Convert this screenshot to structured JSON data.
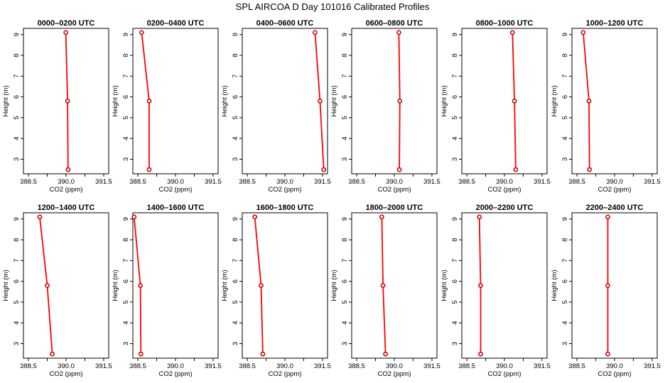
{
  "figure_title": "SPL AIRCOA D  Day 101016  Calibrated Profiles",
  "colors": {
    "line": "#ff0000",
    "marker": "#cc0000",
    "axis": "#000000"
  },
  "chart_data": [
    {
      "type": "line",
      "title": "0000–0200 UTC",
      "xlabel": "CO2 (ppm)",
      "ylabel": "Height (m)",
      "xlim": [
        388.3,
        391.7
      ],
      "ylim": [
        2.3,
        9.3
      ],
      "x_ticks": [
        "388.5",
        "390.0",
        "391.5"
      ],
      "y_ticks": [
        "3",
        "4",
        "5",
        "6",
        "7",
        "8",
        "9"
      ],
      "series": [
        {
          "x": [
            390.08,
            390.06,
            389.99
          ],
          "y": [
            2.5,
            5.8,
            9.1
          ]
        }
      ]
    },
    {
      "type": "line",
      "title": "0200–0400 UTC",
      "xlabel": "CO2 (ppm)",
      "ylabel": "Height (m)",
      "xlim": [
        388.3,
        391.7
      ],
      "ylim": [
        2.3,
        9.3
      ],
      "x_ticks": [
        "388.5",
        "390.0",
        "391.5"
      ],
      "y_ticks": [
        "3",
        "4",
        "5",
        "6",
        "7",
        "8",
        "9"
      ],
      "series": [
        {
          "x": [
            388.95,
            388.95,
            388.65
          ],
          "y": [
            2.5,
            5.8,
            9.1
          ]
        }
      ]
    },
    {
      "type": "line",
      "title": "0400–0600 UTC",
      "xlabel": "CO2 (ppm)",
      "ylabel": "Height (m)",
      "xlim": [
        388.3,
        391.7
      ],
      "ylim": [
        2.3,
        9.3
      ],
      "x_ticks": [
        "388.5",
        "390.0",
        "391.5"
      ],
      "y_ticks": [
        "3",
        "4",
        "5",
        "6",
        "7",
        "8",
        "9"
      ],
      "series": [
        {
          "x": [
            391.55,
            391.4,
            391.2
          ],
          "y": [
            2.5,
            5.8,
            9.1
          ]
        }
      ]
    },
    {
      "type": "line",
      "title": "0600–0800 UTC",
      "xlabel": "CO2 (ppm)",
      "ylabel": "Height (m)",
      "xlim": [
        388.3,
        391.7
      ],
      "ylim": [
        2.3,
        9.3
      ],
      "x_ticks": [
        "388.5",
        "390.0",
        "391.5"
      ],
      "y_ticks": [
        "3",
        "4",
        "5",
        "6",
        "7",
        "8",
        "9"
      ],
      "series": [
        {
          "x": [
            390.2,
            390.22,
            390.18
          ],
          "y": [
            2.5,
            5.8,
            9.1
          ]
        }
      ]
    },
    {
      "type": "line",
      "title": "0800–1000 UTC",
      "xlabel": "CO2 (ppm)",
      "ylabel": "Height (m)",
      "xlim": [
        388.3,
        391.7
      ],
      "ylim": [
        2.3,
        9.3
      ],
      "x_ticks": [
        "388.5",
        "390.0",
        "391.5"
      ],
      "y_ticks": [
        "3",
        "4",
        "5",
        "6",
        "7",
        "8",
        "9"
      ],
      "series": [
        {
          "x": [
            390.45,
            390.4,
            390.32
          ],
          "y": [
            2.5,
            5.8,
            9.1
          ]
        }
      ]
    },
    {
      "type": "line",
      "title": "1000–1200 UTC",
      "xlabel": "CO2 (ppm)",
      "ylabel": "Height (m)",
      "xlim": [
        388.3,
        391.7
      ],
      "ylim": [
        2.3,
        9.3
      ],
      "x_ticks": [
        "388.5",
        "390.0",
        "391.5"
      ],
      "y_ticks": [
        "3",
        "4",
        "5",
        "6",
        "7",
        "8",
        "9"
      ],
      "series": [
        {
          "x": [
            389.0,
            388.98,
            388.75
          ],
          "y": [
            2.5,
            5.8,
            9.1
          ]
        }
      ]
    },
    {
      "type": "line",
      "title": "1200–1400 UTC",
      "xlabel": "CO2 (ppm)",
      "ylabel": "Height (m)",
      "xlim": [
        388.3,
        391.7
      ],
      "ylim": [
        2.3,
        9.3
      ],
      "x_ticks": [
        "388.5",
        "390.0",
        "391.5"
      ],
      "y_ticks": [
        "3",
        "4",
        "5",
        "6",
        "7",
        "8",
        "9"
      ],
      "series": [
        {
          "x": [
            389.45,
            389.25,
            388.95
          ],
          "y": [
            2.5,
            5.8,
            9.1
          ]
        }
      ]
    },
    {
      "type": "line",
      "title": "1400–1600 UTC",
      "xlabel": "CO2 (ppm)",
      "ylabel": "Height (m)",
      "xlim": [
        388.3,
        391.7
      ],
      "ylim": [
        2.3,
        9.3
      ],
      "x_ticks": [
        "388.5",
        "390.0",
        "391.5"
      ],
      "y_ticks": [
        "3",
        "4",
        "5",
        "6",
        "7",
        "8",
        "9"
      ],
      "series": [
        {
          "x": [
            388.62,
            388.6,
            388.35
          ],
          "y": [
            2.5,
            5.8,
            9.1
          ]
        }
      ]
    },
    {
      "type": "line",
      "title": "1600–1800 UTC",
      "xlabel": "CO2 (ppm)",
      "ylabel": "Height (m)",
      "xlim": [
        388.3,
        391.7
      ],
      "ylim": [
        2.3,
        9.3
      ],
      "x_ticks": [
        "388.5",
        "390.0",
        "391.5"
      ],
      "y_ticks": [
        "3",
        "4",
        "5",
        "6",
        "7",
        "8",
        "9"
      ],
      "series": [
        {
          "x": [
            389.12,
            389.05,
            388.8
          ],
          "y": [
            2.5,
            5.8,
            9.1
          ]
        }
      ]
    },
    {
      "type": "line",
      "title": "1800–2000 UTC",
      "xlabel": "CO2 (ppm)",
      "ylabel": "Height (m)",
      "xlim": [
        388.3,
        391.7
      ],
      "ylim": [
        2.3,
        9.3
      ],
      "x_ticks": [
        "388.5",
        "390.0",
        "391.5"
      ],
      "y_ticks": [
        "3",
        "4",
        "5",
        "6",
        "7",
        "8",
        "9"
      ],
      "series": [
        {
          "x": [
            389.65,
            389.55,
            389.5
          ],
          "y": [
            2.5,
            5.8,
            9.1
          ]
        }
      ]
    },
    {
      "type": "line",
      "title": "2000–2200 UTC",
      "xlabel": "CO2 (ppm)",
      "ylabel": "Height (m)",
      "xlim": [
        388.3,
        391.7
      ],
      "ylim": [
        2.3,
        9.3
      ],
      "x_ticks": [
        "388.5",
        "390.0",
        "391.5"
      ],
      "y_ticks": [
        "3",
        "4",
        "5",
        "6",
        "7",
        "8",
        "9"
      ],
      "series": [
        {
          "x": [
            389.05,
            389.05,
            389.0
          ],
          "y": [
            2.5,
            5.8,
            9.1
          ]
        }
      ]
    },
    {
      "type": "line",
      "title": "2200–2400 UTC",
      "xlabel": "CO2 (ppm)",
      "ylabel": "Height (m)",
      "xlim": [
        388.3,
        391.7
      ],
      "ylim": [
        2.3,
        9.3
      ],
      "x_ticks": [
        "388.5",
        "390.0",
        "391.5"
      ],
      "y_ticks": [
        "3",
        "4",
        "5",
        "6",
        "7",
        "8",
        "9"
      ],
      "series": [
        {
          "x": [
            389.73,
            389.73,
            389.73
          ],
          "y": [
            2.5,
            5.8,
            9.1
          ]
        }
      ]
    }
  ]
}
